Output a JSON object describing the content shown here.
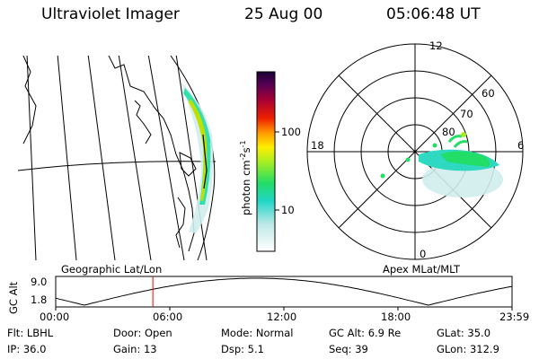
{
  "header": {
    "instrument": "Ultraviolet Imager",
    "date": "25 Aug 00",
    "time": "05:06:48 UT"
  },
  "colorbar": {
    "label_main": "photon cm",
    "label_exp1": "-2",
    "label_mid": "s",
    "label_exp2": "-1",
    "ticks": [
      {
        "label": "100",
        "value": 100
      },
      {
        "label": "10",
        "value": 10
      }
    ]
  },
  "polar_plot": {
    "mlt_labels": {
      "top": "12",
      "left": "18",
      "right": "6",
      "bottom": "0"
    },
    "lat_labels": [
      {
        "label": "60",
        "lat": 60
      },
      {
        "label": "70",
        "lat": 70
      },
      {
        "label": "80",
        "lat": 80
      }
    ]
  },
  "left_panel_title": "Geographic Lat/Lon",
  "right_panel_title": "Apex MLat/MLT",
  "alt_plot": {
    "ylabel": "GC Alt",
    "y_ticks": [
      {
        "label": "9.0",
        "value": 9.0
      },
      {
        "label": "1.8",
        "value": 1.8
      }
    ],
    "x_ticks": [
      "00:00",
      "06:00",
      "12:00",
      "18:00",
      "23:59"
    ],
    "current_time_hours": 5.11,
    "colors": {
      "curve": "#000000",
      "marker": "#ff0000"
    }
  },
  "info": {
    "filter": "Flt: LBHL",
    "door": "Door: Open",
    "mode": "Mode: Normal",
    "gc_alt": "GC Alt: 6.9 Re",
    "glat": "GLat:  35.0",
    "ip": "IP: 36.0",
    "gain": "Gain: 13",
    "dsp": "Dsp:     5.1",
    "seq": "Seq: 39",
    "glon": "GLon: 312.9"
  }
}
